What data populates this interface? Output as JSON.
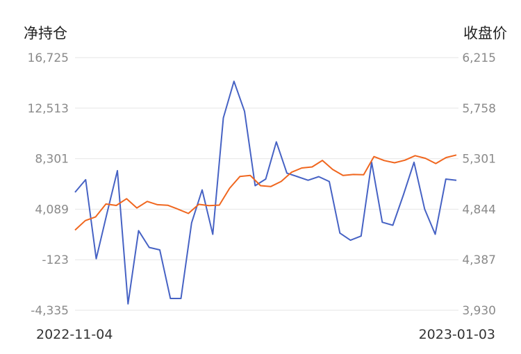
{
  "chart_data": {
    "type": "line",
    "left_axis_title": "净持仓",
    "right_axis_title": "收盘价",
    "x_labels": [
      "2022-11-04",
      "2023-01-03"
    ],
    "y_left": {
      "ticks": [
        "16,725",
        "12,513",
        "8,301",
        "4,089",
        "-123",
        "-4,335"
      ],
      "min": -4335,
      "max": 16725
    },
    "y_right": {
      "ticks": [
        "6,215",
        "5,758",
        "5,301",
        "4,844",
        "4,387",
        "3,930"
      ],
      "min": 3930,
      "max": 6215
    },
    "grid": true,
    "series": [
      {
        "axis": "left",
        "color": "#4662c4",
        "values": [
          5500,
          6550,
          -40,
          3700,
          7300,
          -3800,
          2300,
          900,
          700,
          -3350,
          -3350,
          2950,
          5700,
          2000,
          11700,
          14750,
          12250,
          6050,
          6600,
          9700,
          7100,
          6800,
          6500,
          6800,
          6400,
          2100,
          1500,
          1850,
          8000,
          3000,
          2750,
          5300,
          8000,
          4100,
          2000,
          6600,
          6500
        ]
      },
      {
        "axis": "right",
        "color": "#f0661e",
        "values": [
          4655,
          4741,
          4775,
          4891,
          4878,
          4939,
          4855,
          4914,
          4885,
          4880,
          4844,
          4806,
          4888,
          4876,
          4881,
          5034,
          5140,
          5150,
          5057,
          5049,
          5095,
          5178,
          5217,
          5226,
          5285,
          5204,
          5149,
          5158,
          5156,
          5320,
          5284,
          5264,
          5287,
          5328,
          5304,
          5257,
          5311,
          5334
        ]
      }
    ]
  }
}
